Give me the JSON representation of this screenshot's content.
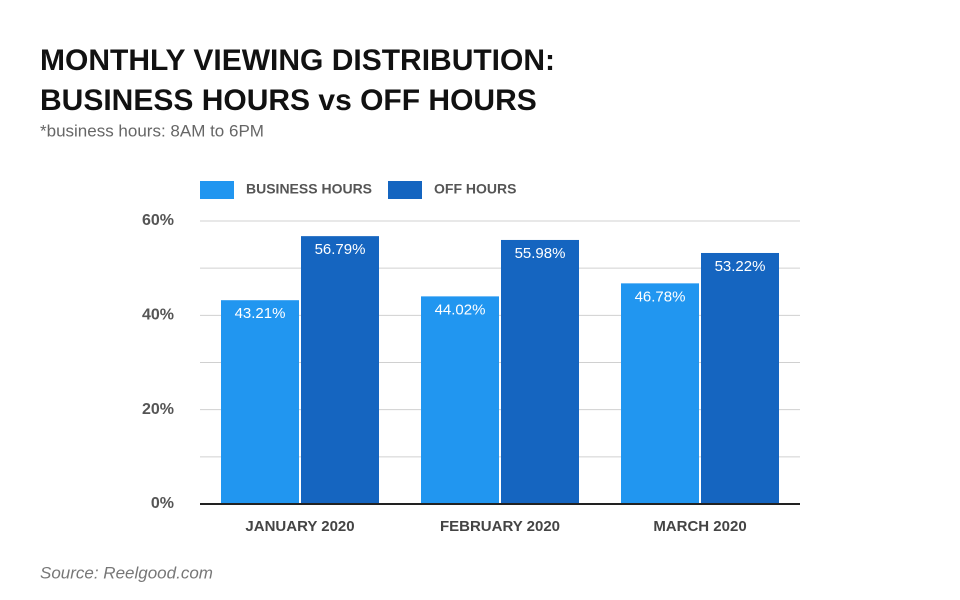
{
  "chart_data": {
    "type": "bar",
    "title": [
      "MONTHLY VIEWING DISTRIBUTION:",
      "BUSINESS HOURS vs OFF HOURS"
    ],
    "subtitle": "*business hours: 8AM to 6PM",
    "source": "Source: Reelgood.com",
    "categories": [
      "JANUARY 2020",
      "FEBRUARY 2020",
      "MARCH 2020"
    ],
    "series": [
      {
        "name": "BUSINESS HOURS",
        "color": "#2196f0",
        "values": [
          43.21,
          44.02,
          46.78
        ],
        "value_labels": [
          "43.21%",
          "44.02%",
          "46.78%"
        ]
      },
      {
        "name": "OFF HOURS",
        "color": "#1565c0",
        "values": [
          56.79,
          55.98,
          53.22
        ],
        "value_labels": [
          "56.79%",
          "55.98%",
          "53.22%"
        ]
      }
    ],
    "ylim": [
      0,
      60
    ],
    "yticks": [
      {
        "value": 0,
        "label": "0%"
      },
      {
        "value": 20,
        "label": "20%"
      },
      {
        "value": 40,
        "label": "40%"
      },
      {
        "value": 60,
        "label": "60%"
      }
    ],
    "minor_yticks": [
      10,
      30,
      50
    ],
    "grid": true,
    "legend": "top-left"
  }
}
